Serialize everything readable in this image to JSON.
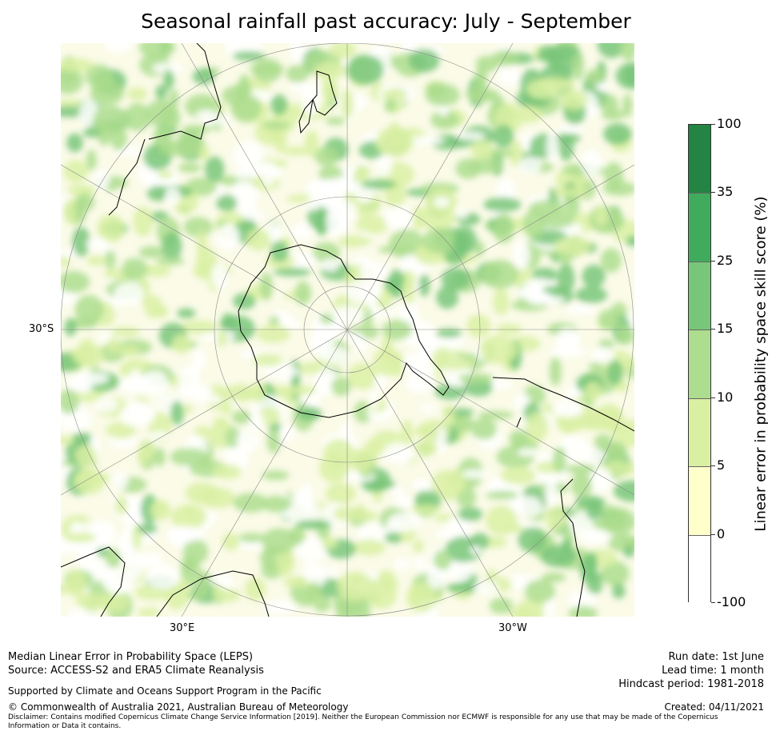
{
  "title": "Seasonal rainfall past accuracy: July - September",
  "map": {
    "projection": "south-polar-stereographic",
    "lat_labels": {
      "west_edge": "30°S",
      "bottom_left": "30°E",
      "bottom_right": "30°W"
    }
  },
  "colorbar": {
    "label": "Linear error in probability space skill score (%)",
    "ticks": [
      "100",
      "35",
      "25",
      "15",
      "10",
      "5",
      "0",
      "-100"
    ],
    "colors": [
      "#238443",
      "#41ab5d",
      "#78c679",
      "#addd8e",
      "#d9f0a3",
      "#ffffcc",
      "#ffffff"
    ]
  },
  "footer": {
    "left_line1": "Median Linear Error in Probability Space (LEPS)",
    "left_line2": "Source: ACCESS-S2 and ERA5 Climate Reanalysis",
    "support": "Supported by Climate and Oceans Support Program in the Pacific",
    "copyright": "© Commonwealth of Australia 2021, Australian Bureau of Meteorology",
    "disclaimer": "Disclaimer: Contains modified Copernicus Climate Change Service Information [2019]. Neither the European Commission nor ECMWF is responsible for any use that may be made of the Copernicus Information or Data it contains.",
    "run_date": "Run date: 1st June",
    "lead_time": "Lead time: 1 month",
    "hindcast": "Hindcast period: 1981-2018",
    "created": "Created: 04/11/2021"
  }
}
